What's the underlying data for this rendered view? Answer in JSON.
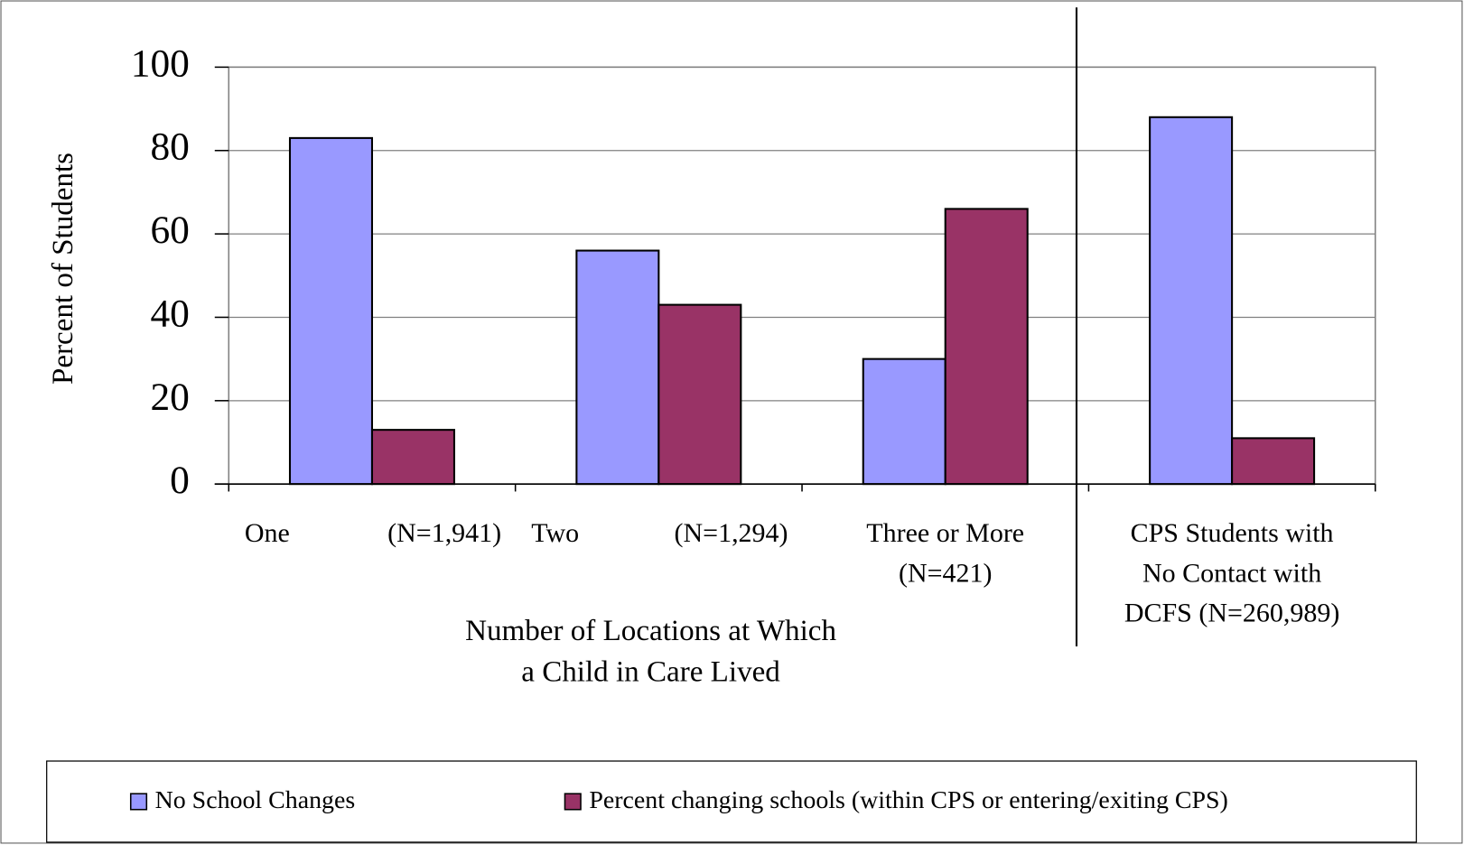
{
  "chart_data": {
    "type": "bar",
    "ylabel": "Percent of Students",
    "xlabel": [
      "Number of Locations at Which",
      "a Child in Care Lived"
    ],
    "categories": [
      [
        "One",
        "(N=1,941)"
      ],
      [
        "Two",
        "(N=1,294)"
      ],
      [
        "Three or More",
        "(N=421)"
      ],
      [
        "CPS Students with",
        "No Contact with",
        "DCFS (N=260,989)"
      ]
    ],
    "series": [
      {
        "name": "No School Changes",
        "color": "#9999ff",
        "values": [
          83,
          56,
          30,
          88
        ]
      },
      {
        "name": "Percent changing schools (within CPS or entering/exiting CPS)",
        "color": "#993366",
        "values": [
          13,
          43,
          66,
          11
        ]
      }
    ],
    "ylim": [
      0,
      100
    ],
    "yticks": [
      0,
      20,
      40,
      60,
      80,
      100
    ],
    "grid": true,
    "legend": "bottom"
  }
}
